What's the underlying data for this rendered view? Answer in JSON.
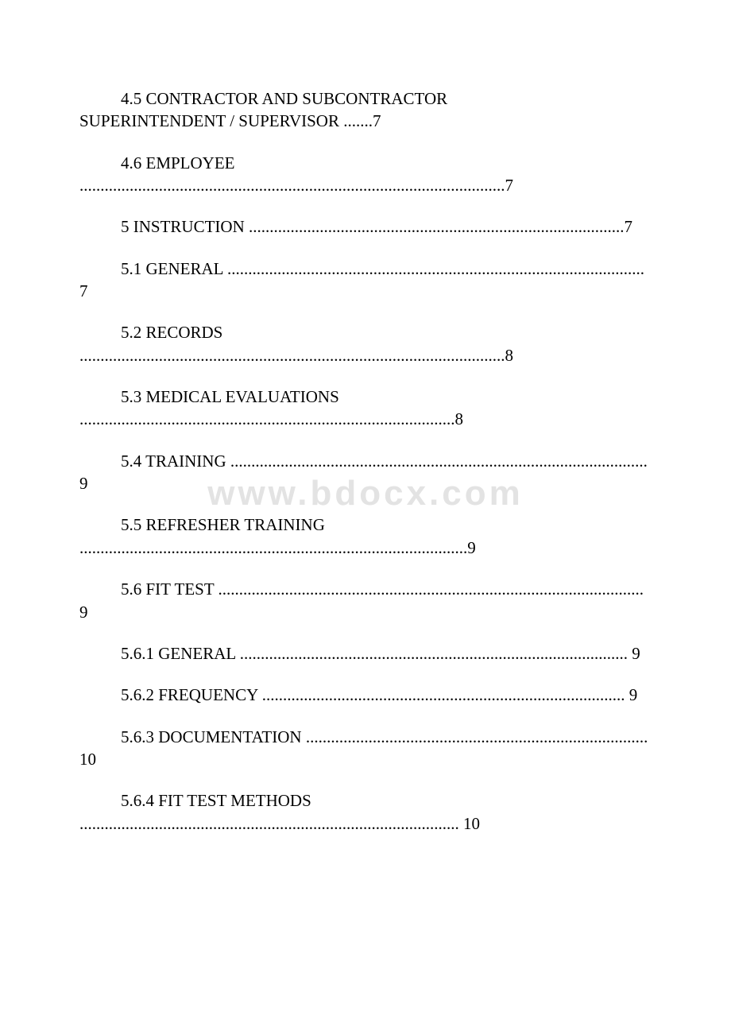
{
  "watermark": "www.bdocx.com",
  "entries": [
    {
      "indent": true,
      "text": "4.5 CONTRACTOR AND SUBCONTRACTOR SUPERINTENDENT / SUPERVISOR .......7",
      "noIndentWrap": true
    },
    {
      "indent": true,
      "text": "4.6 EMPLOYEE ......................................................................................................7"
    },
    {
      "indent": true,
      "text": "5 INSTRUCTION..........................................................................................7"
    },
    {
      "indent": true,
      "text": "5.1 GENERAL ....................................................................................................7"
    },
    {
      "indent": true,
      "text": "5.2 RECORDS ......................................................................................................8"
    },
    {
      "indent": true,
      "text": "5.3 MEDICAL EVALUATIONS..........................................................................................8"
    },
    {
      "indent": true,
      "text": "5.4 TRAINING ....................................................................................................9"
    },
    {
      "indent": true,
      "text": "5.5 REFRESHER TRAINING.............................................................................................9"
    },
    {
      "indent": true,
      "text": "5.6 FIT TEST......................................................................................................9"
    },
    {
      "indent": true,
      "text": "5.6.1 GENERAL............................................................................................. 9"
    },
    {
      "indent": true,
      "text": "5.6.2 FREQUENCY ....................................................................................... 9"
    },
    {
      "indent": true,
      "text": "5.6.3 DOCUMENTATION.................................................................................. 10"
    },
    {
      "indent": true,
      "text": "5.6.4 FIT TEST METHODS........................................................................................... 10"
    }
  ]
}
